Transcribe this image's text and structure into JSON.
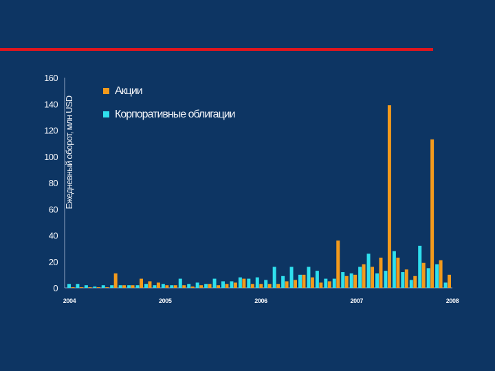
{
  "colors": {
    "background": "#0d3563",
    "accent_rule": "#e0161e",
    "stocks": "#f39a1c",
    "bonds": "#2fe0ee",
    "text": "#f2f4f8"
  },
  "chart_data": {
    "type": "bar",
    "ylabel": "Ежедневный оборот, млн USD",
    "ylim": [
      0,
      160
    ],
    "yticks": [
      "160",
      "140",
      "120",
      "100",
      "80",
      "60",
      "40",
      "20",
      "0"
    ],
    "xticks": [
      "2004",
      "2005",
      "2006",
      "2007",
      "2008"
    ],
    "legend_position": "top-left",
    "grid": false,
    "series": [
      {
        "name": "Акции",
        "color": "#f39a1c",
        "values": [
          0.5,
          0.5,
          0.5,
          0.5,
          0.5,
          11,
          2,
          2,
          7,
          5,
          4,
          2,
          2,
          2,
          1,
          2,
          3,
          2,
          3,
          4,
          7,
          3,
          3,
          3,
          3,
          5,
          6,
          10,
          8,
          4,
          5,
          36,
          9,
          10,
          18,
          16,
          23,
          139,
          23,
          14,
          9,
          19,
          113,
          21,
          10
        ]
      },
      {
        "name": "Корпоративные облигации",
        "color": "#2fe0ee",
        "values": [
          3,
          3,
          2,
          1,
          2,
          2,
          2,
          2,
          2,
          3,
          2,
          3,
          2,
          7,
          3,
          4,
          3,
          7,
          5,
          5,
          8,
          7,
          8,
          6,
          16,
          9,
          16,
          10,
          16,
          13,
          7,
          7,
          12,
          11,
          16,
          26,
          11,
          13,
          28,
          12,
          6,
          32,
          15,
          18,
          4
        ]
      }
    ]
  }
}
